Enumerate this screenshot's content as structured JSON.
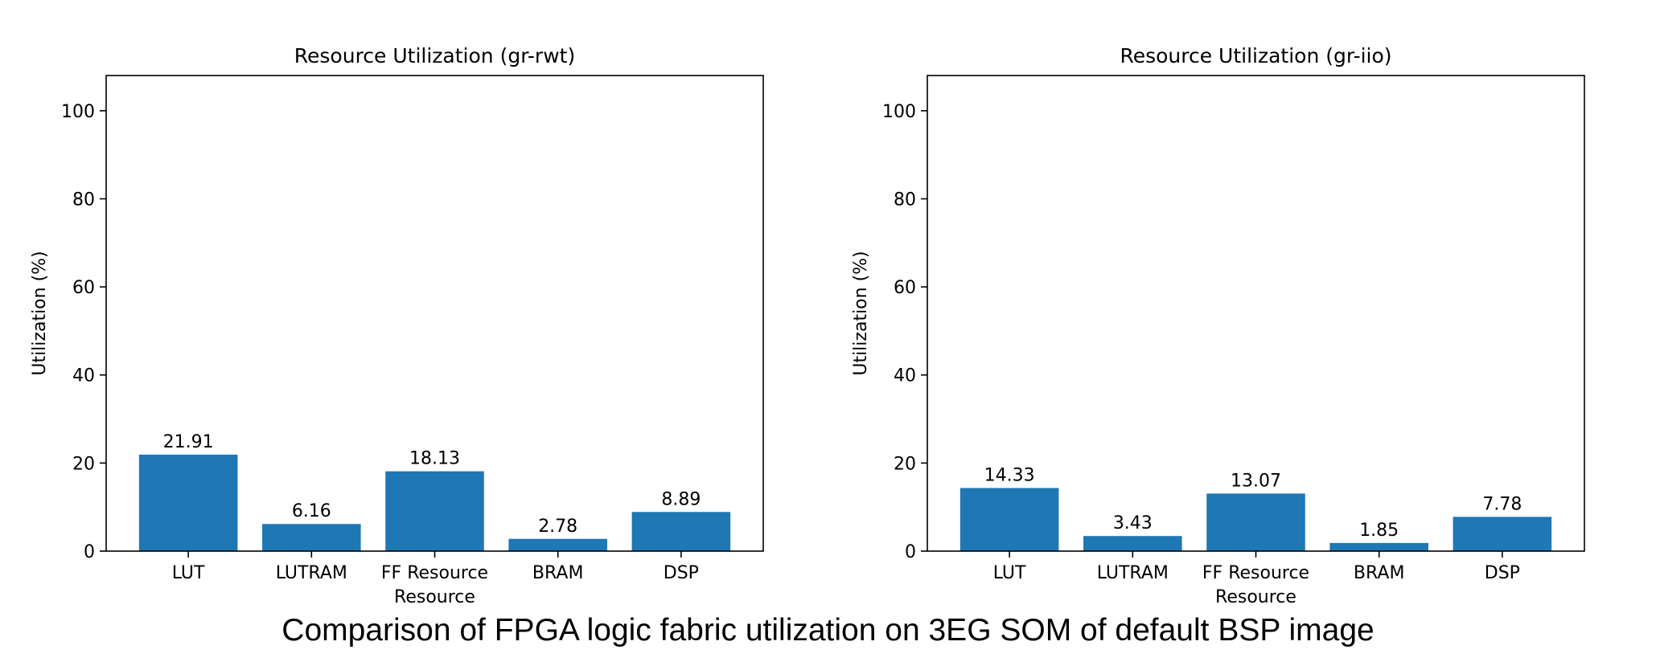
{
  "caption": "Comparison of FPGA logic fabric utilization on 3EG SOM of default BSP image",
  "colors": {
    "bar": "#1f77b4",
    "axis": "#000000",
    "background": "#ffffff"
  },
  "chart_data": [
    {
      "type": "bar",
      "title": "Resource Utilization (gr-rwt)",
      "xlabel": "Resource",
      "ylabel": "Utilization (%)",
      "categories": [
        "LUT",
        "LUTRAM",
        "FF Resource",
        "BRAM",
        "DSP"
      ],
      "values": [
        21.91,
        6.16,
        18.13,
        2.78,
        8.89
      ],
      "data_labels": [
        "21.91",
        "6.16",
        "18.13",
        "2.78",
        "8.89"
      ],
      "ylim": [
        0,
        108
      ],
      "yticks": [
        0,
        20,
        40,
        60,
        80,
        100
      ],
      "grid": false,
      "legend": "none"
    },
    {
      "type": "bar",
      "title": "Resource Utilization (gr-iio)",
      "xlabel": "Resource",
      "ylabel": "Utilization (%)",
      "categories": [
        "LUT",
        "LUTRAM",
        "FF Resource",
        "BRAM",
        "DSP"
      ],
      "values": [
        14.33,
        3.43,
        13.07,
        1.85,
        7.78
      ],
      "data_labels": [
        "14.33",
        "3.43",
        "13.07",
        "1.85",
        "7.78"
      ],
      "ylim": [
        0,
        108
      ],
      "yticks": [
        0,
        20,
        40,
        60,
        80,
        100
      ],
      "grid": false,
      "legend": "none"
    }
  ]
}
